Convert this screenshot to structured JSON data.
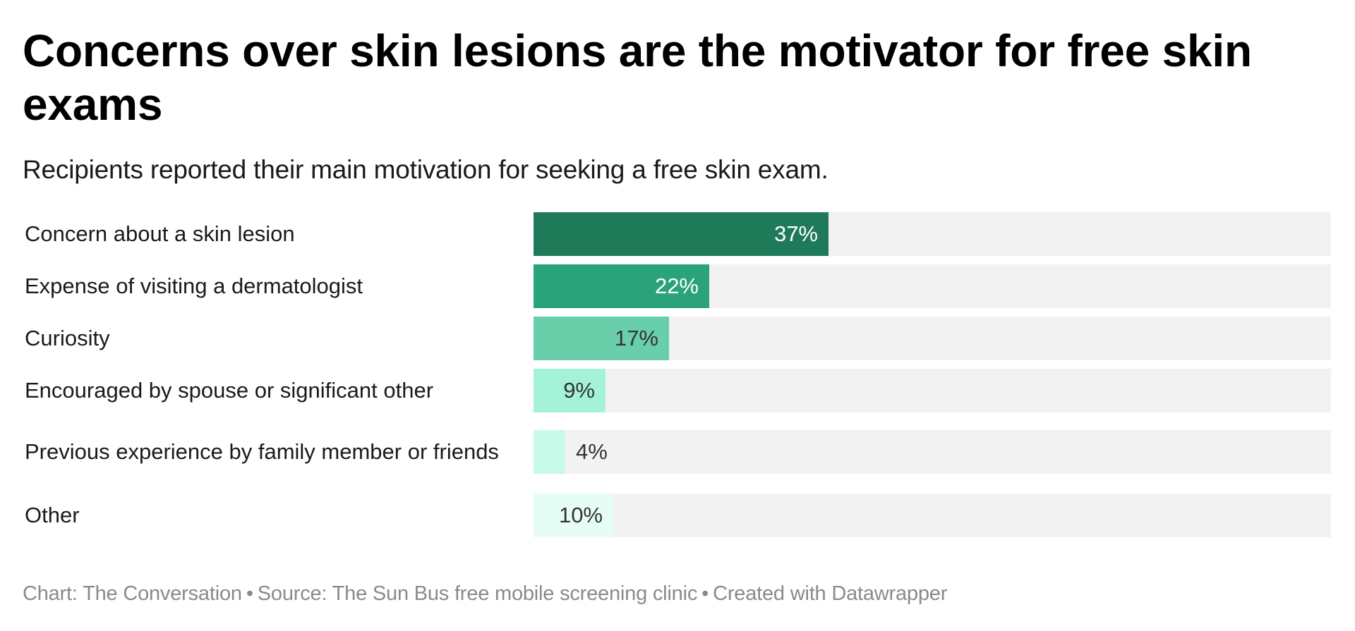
{
  "header": {
    "title": "Concerns over skin lesions are the motivator for free skin exams",
    "subtitle": "Recipients reported their main motivation for seeking a free skin exam."
  },
  "footer": {
    "chart_credit": "Chart: The Conversation",
    "separator": "•",
    "source": "Source: The Sun Bus free mobile screening clinic",
    "created_with": "Created with Datawrapper"
  },
  "colors": {
    "track": "#f2f2f2",
    "bar_1": "#1f7a5a",
    "bar_2": "#2aa27a",
    "bar_3": "#69cfab",
    "bar_4": "#a4f3d8",
    "bar_5": "#c9f9e8",
    "bar_6": "#e6fdf5"
  },
  "rows": [
    {
      "label": "Concern about a skin lesion",
      "value": 37,
      "value_label": "37%",
      "color": "#1f7a5a",
      "text_color": "#ffffff",
      "inside": true
    },
    {
      "label": "Expense of visiting a dermatologist",
      "value": 22,
      "value_label": "22%",
      "color": "#2aa27a",
      "text_color": "#ffffff",
      "inside": true
    },
    {
      "label": "Curiosity",
      "value": 17,
      "value_label": "17%",
      "color": "#69cfab",
      "text_color": "#333333",
      "inside": true
    },
    {
      "label": "Encouraged by spouse or significant other",
      "value": 9,
      "value_label": "9%",
      "color": "#a4f3d8",
      "text_color": "#333333",
      "inside": true
    },
    {
      "label": "Previous experience by family member or friends",
      "value": 4,
      "value_label": "4%",
      "color": "#c9f9e8",
      "text_color": "#333333",
      "inside": false
    },
    {
      "label": "Other",
      "value": 10,
      "value_label": "10%",
      "color": "#e6fdf5",
      "text_color": "#333333",
      "inside": true
    }
  ],
  "chart_data": {
    "type": "bar",
    "orientation": "horizontal",
    "title": "Concerns over skin lesions are the motivator for free skin exams",
    "subtitle": "Recipients reported their main motivation for seeking a free skin exam.",
    "categories": [
      "Concern about a skin lesion",
      "Expense of visiting a dermatologist",
      "Curiosity",
      "Encouraged by spouse or significant other",
      "Previous experience by family member or friends",
      "Other"
    ],
    "values": [
      37,
      22,
      17,
      9,
      4,
      10
    ],
    "value_labels": [
      "37%",
      "22%",
      "17%",
      "9%",
      "4%",
      "10%"
    ],
    "unit": "%",
    "xlabel": "",
    "ylabel": "",
    "xlim": [
      0,
      100
    ],
    "grid": false,
    "legend": "none",
    "background_track": true,
    "notes": "Chart: The Conversation • Source: The Sun Bus free mobile screening clinic • Created with Datawrapper"
  }
}
